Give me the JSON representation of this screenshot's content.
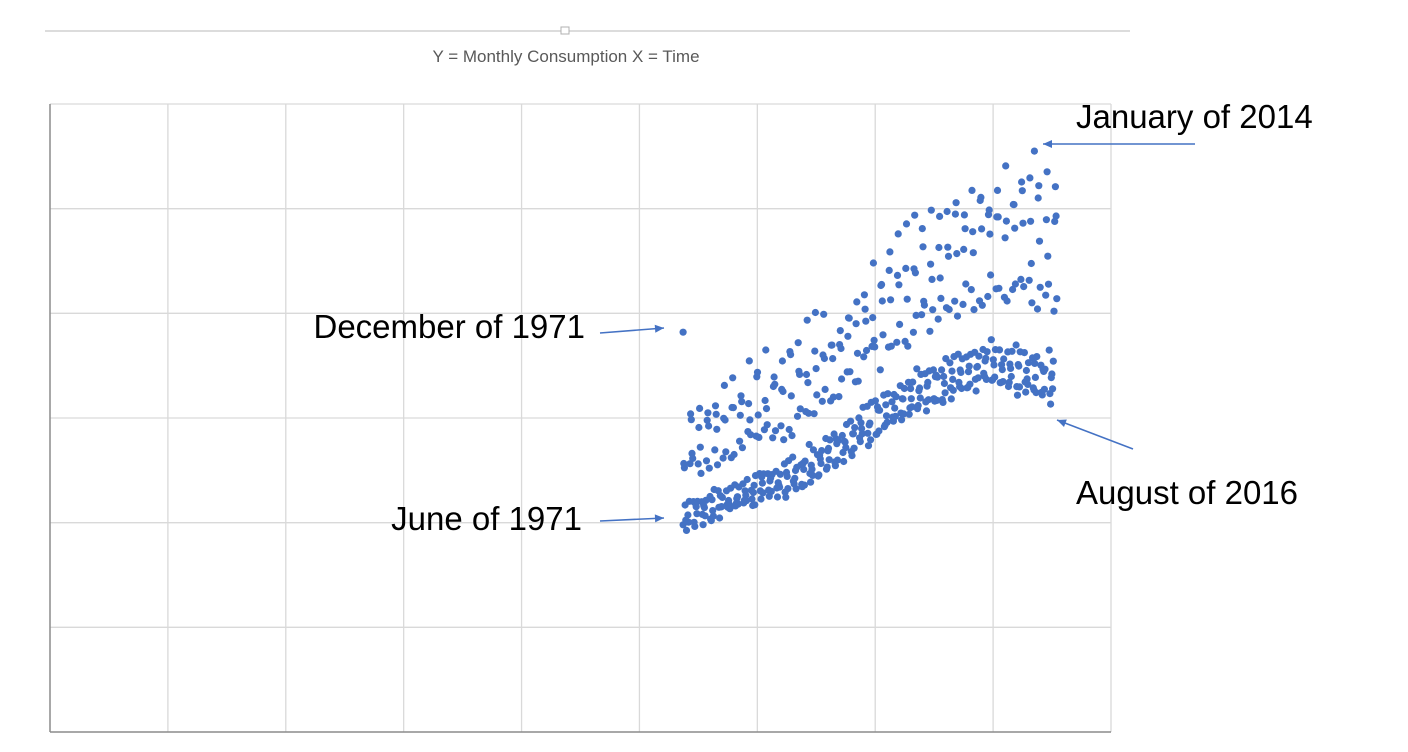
{
  "chart_data": {
    "type": "scatter",
    "title": "Y = Monthly Consumption X = Time",
    "xlabel": "",
    "ylabel": "",
    "xlim": [
      0,
      9
    ],
    "ylim": [
      0,
      6
    ],
    "grid": true,
    "legend": "none",
    "series_color": "#4472c4",
    "annotations": [
      {
        "text": "December of 1971",
        "x": 5.3,
        "y": 3.87
      },
      {
        "text": "June of 1971",
        "x": 5.3,
        "y": 2.02
      },
      {
        "text": "January of 2014",
        "x": 8.3,
        "y": 5.48
      },
      {
        "text": "August of 2016",
        "x": 8.5,
        "y": 2.95
      }
    ],
    "frame": {
      "top": 1,
      "right": 9,
      "bottom": 1,
      "left": 1
    },
    "points": []
  }
}
